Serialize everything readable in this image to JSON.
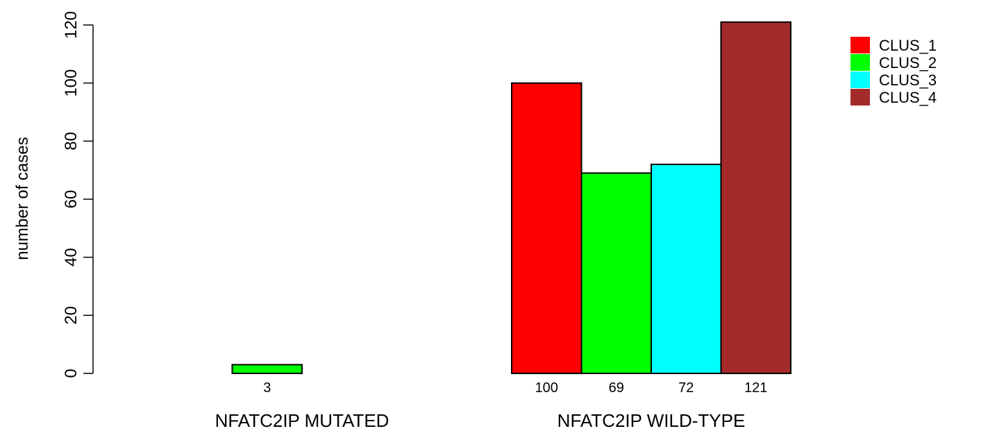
{
  "chart_data": {
    "type": "bar",
    "ylabel": "number of cases",
    "ylim": [
      0,
      120
    ],
    "yticks": [
      "0",
      "20",
      "40",
      "60",
      "80",
      "100",
      "120"
    ],
    "groups": [
      {
        "label": "NFATC2IP MUTATED",
        "values": [
          0,
          3,
          0,
          0
        ],
        "value_labels": [
          "",
          "3",
          "",
          ""
        ]
      },
      {
        "label": "NFATC2IP WILD-TYPE",
        "values": [
          100,
          69,
          72,
          121
        ],
        "value_labels": [
          "100",
          "69",
          "72",
          "121"
        ]
      }
    ],
    "series": [
      {
        "name": "CLUS_1",
        "color": "#ff0000"
      },
      {
        "name": "CLUS_2",
        "color": "#00ff00"
      },
      {
        "name": "CLUS_3",
        "color": "#00ffff"
      },
      {
        "name": "CLUS_4",
        "color": "#a52a2a"
      }
    ],
    "legend_position": "top-right",
    "grid": false
  }
}
